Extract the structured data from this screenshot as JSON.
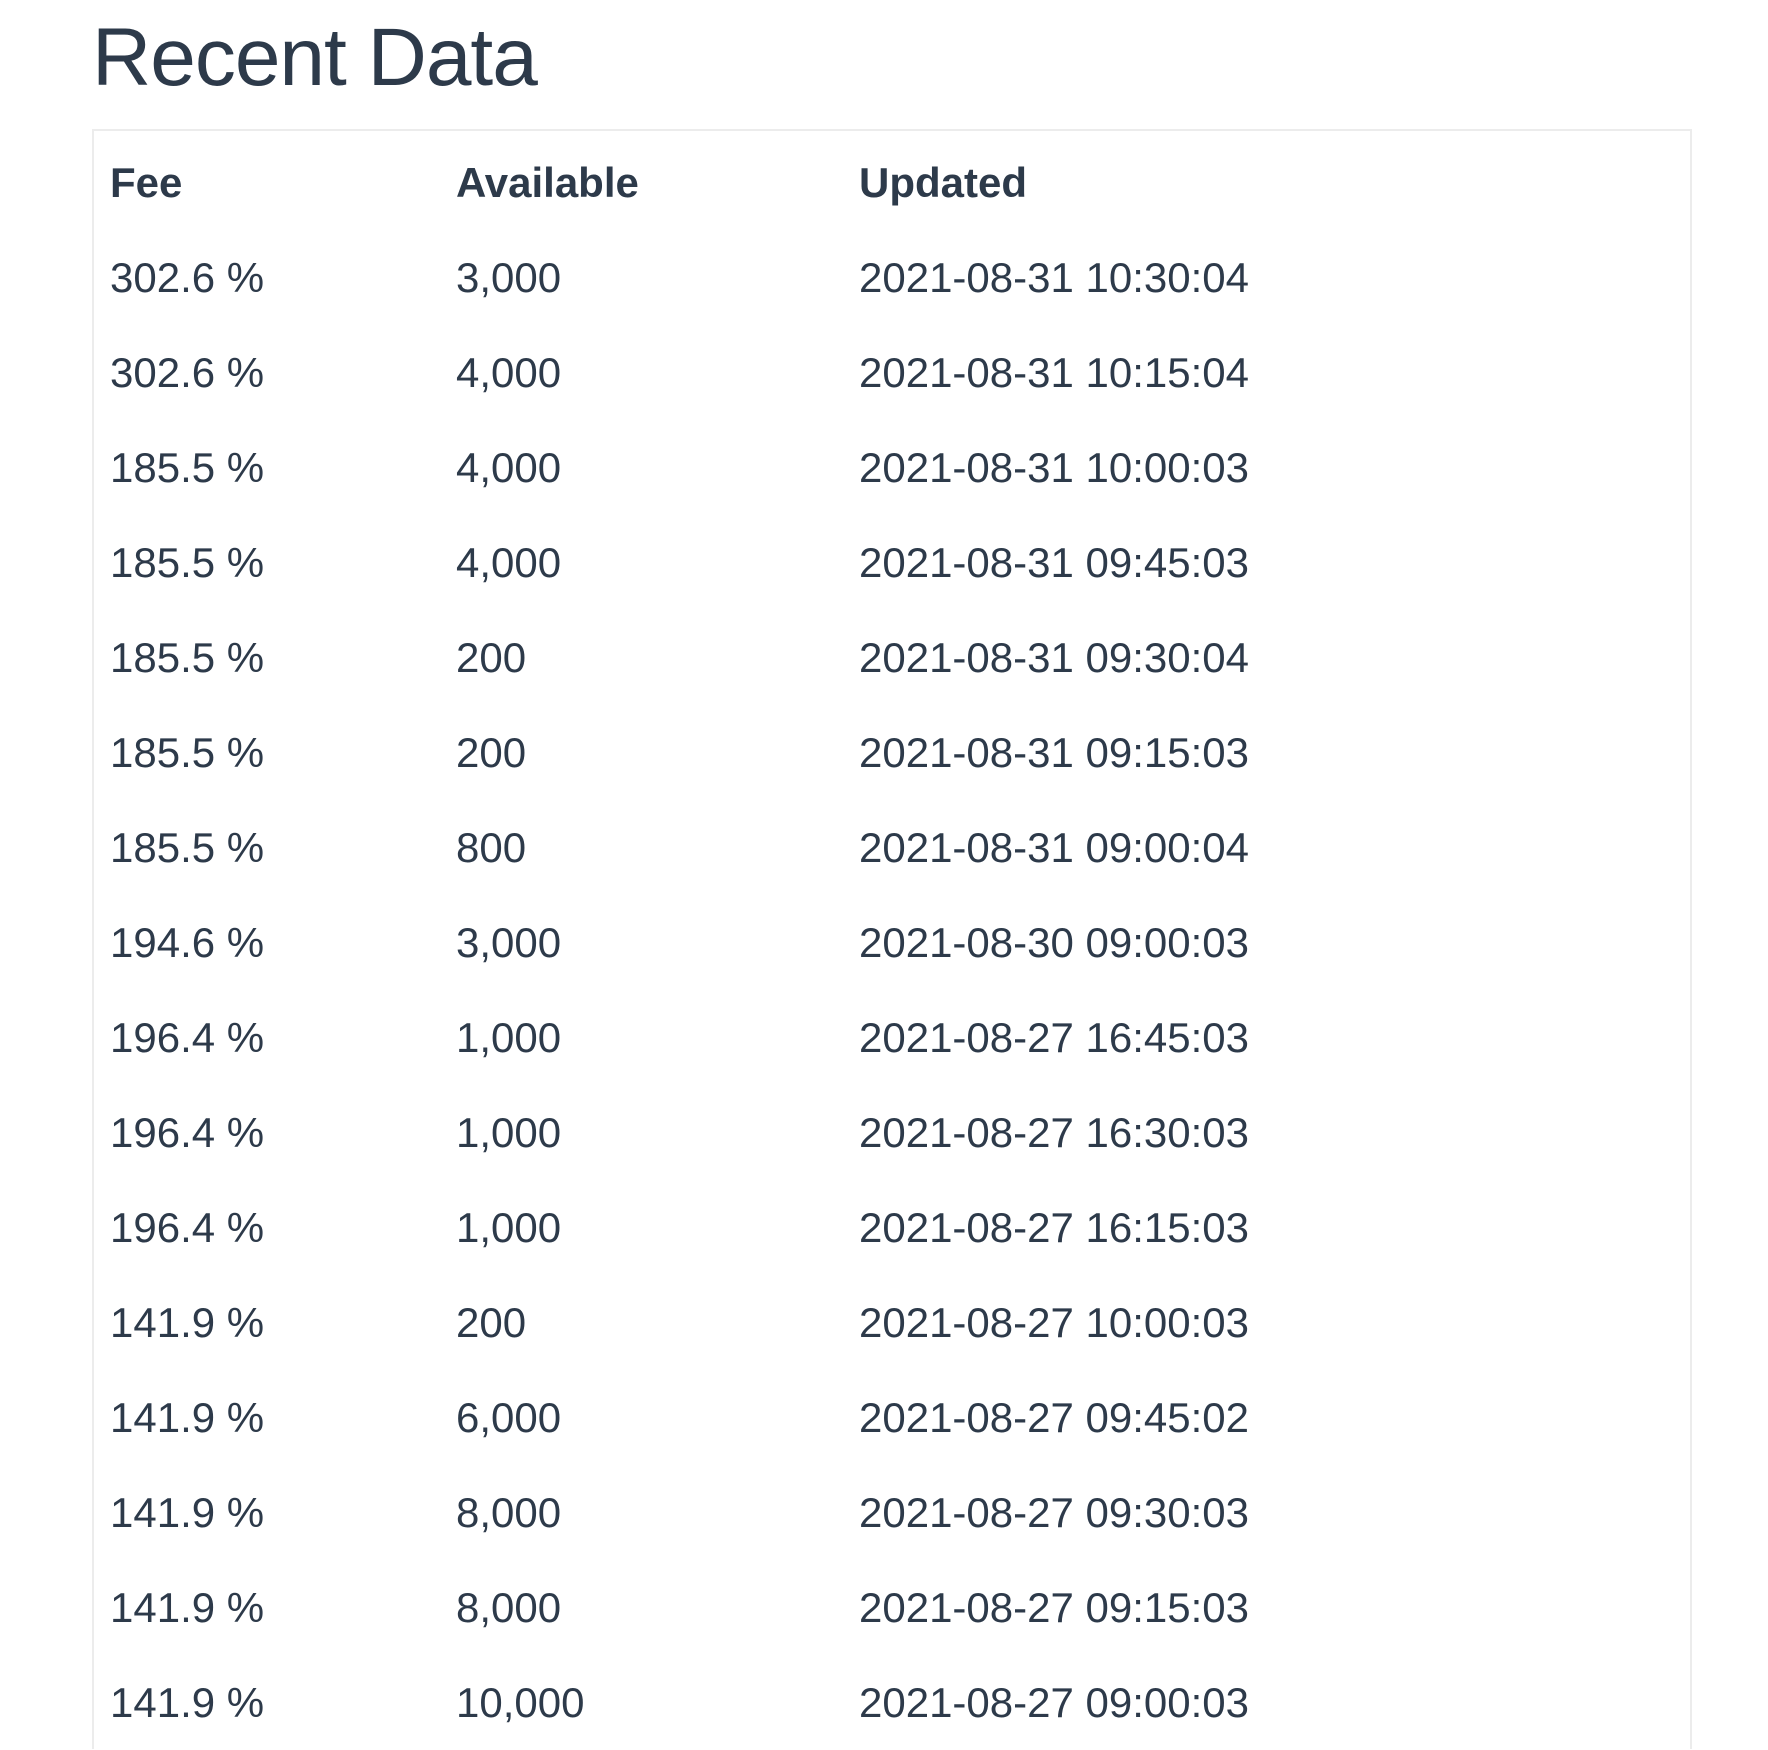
{
  "title": "Recent Data",
  "table": {
    "headers": [
      "Fee",
      "Available",
      "Updated"
    ],
    "rows": [
      [
        "302.6 %",
        "3,000",
        "2021-08-31 10:30:04"
      ],
      [
        "302.6 %",
        "4,000",
        "2021-08-31 10:15:04"
      ],
      [
        "185.5 %",
        "4,000",
        "2021-08-31 10:00:03"
      ],
      [
        "185.5 %",
        "4,000",
        "2021-08-31 09:45:03"
      ],
      [
        "185.5 %",
        "200",
        "2021-08-31 09:30:04"
      ],
      [
        "185.5 %",
        "200",
        "2021-08-31 09:15:03"
      ],
      [
        "185.5 %",
        "800",
        "2021-08-31 09:00:04"
      ],
      [
        "194.6 %",
        "3,000",
        "2021-08-30 09:00:03"
      ],
      [
        "196.4 %",
        "1,000",
        "2021-08-27 16:45:03"
      ],
      [
        "196.4 %",
        "1,000",
        "2021-08-27 16:30:03"
      ],
      [
        "196.4 %",
        "1,000",
        "2021-08-27 16:15:03"
      ],
      [
        "141.9 %",
        "200",
        "2021-08-27 10:00:03"
      ],
      [
        "141.9 %",
        "6,000",
        "2021-08-27 09:45:02"
      ],
      [
        "141.9 %",
        "8,000",
        "2021-08-27 09:30:03"
      ],
      [
        "141.9 %",
        "8,000",
        "2021-08-27 09:15:03"
      ],
      [
        "141.9 %",
        "10,000",
        "2021-08-27 09:00:03"
      ]
    ]
  }
}
